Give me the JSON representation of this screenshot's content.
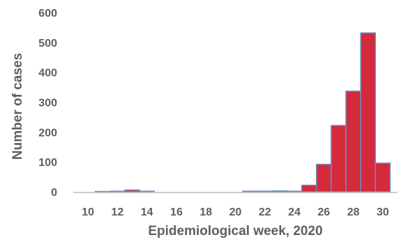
{
  "chart_data": {
    "type": "bar",
    "title": "",
    "xlabel": "Epidemiological week, 2020",
    "ylabel": "Number of cases",
    "x": [
      10,
      11,
      12,
      13,
      14,
      15,
      16,
      17,
      18,
      19,
      20,
      21,
      22,
      23,
      24,
      25,
      26,
      27,
      28,
      29,
      30
    ],
    "values": [
      0,
      1,
      2,
      6,
      2,
      0,
      0,
      0,
      0,
      0,
      0,
      2,
      2,
      3,
      2,
      22,
      92,
      222,
      337,
      532,
      96
    ],
    "xticks": [
      10,
      12,
      14,
      16,
      18,
      20,
      22,
      24,
      26,
      28,
      30
    ],
    "yticks": [
      0,
      100,
      200,
      300,
      400,
      500,
      600
    ],
    "xlim": [
      9,
      31
    ],
    "ylim": [
      0,
      600
    ],
    "grid": false,
    "colors": {
      "bar_fill": "#d42a3c",
      "bar_edge": "#6c8fbf",
      "axis": "#bdbdbd",
      "text": "#5f5f5f"
    }
  }
}
